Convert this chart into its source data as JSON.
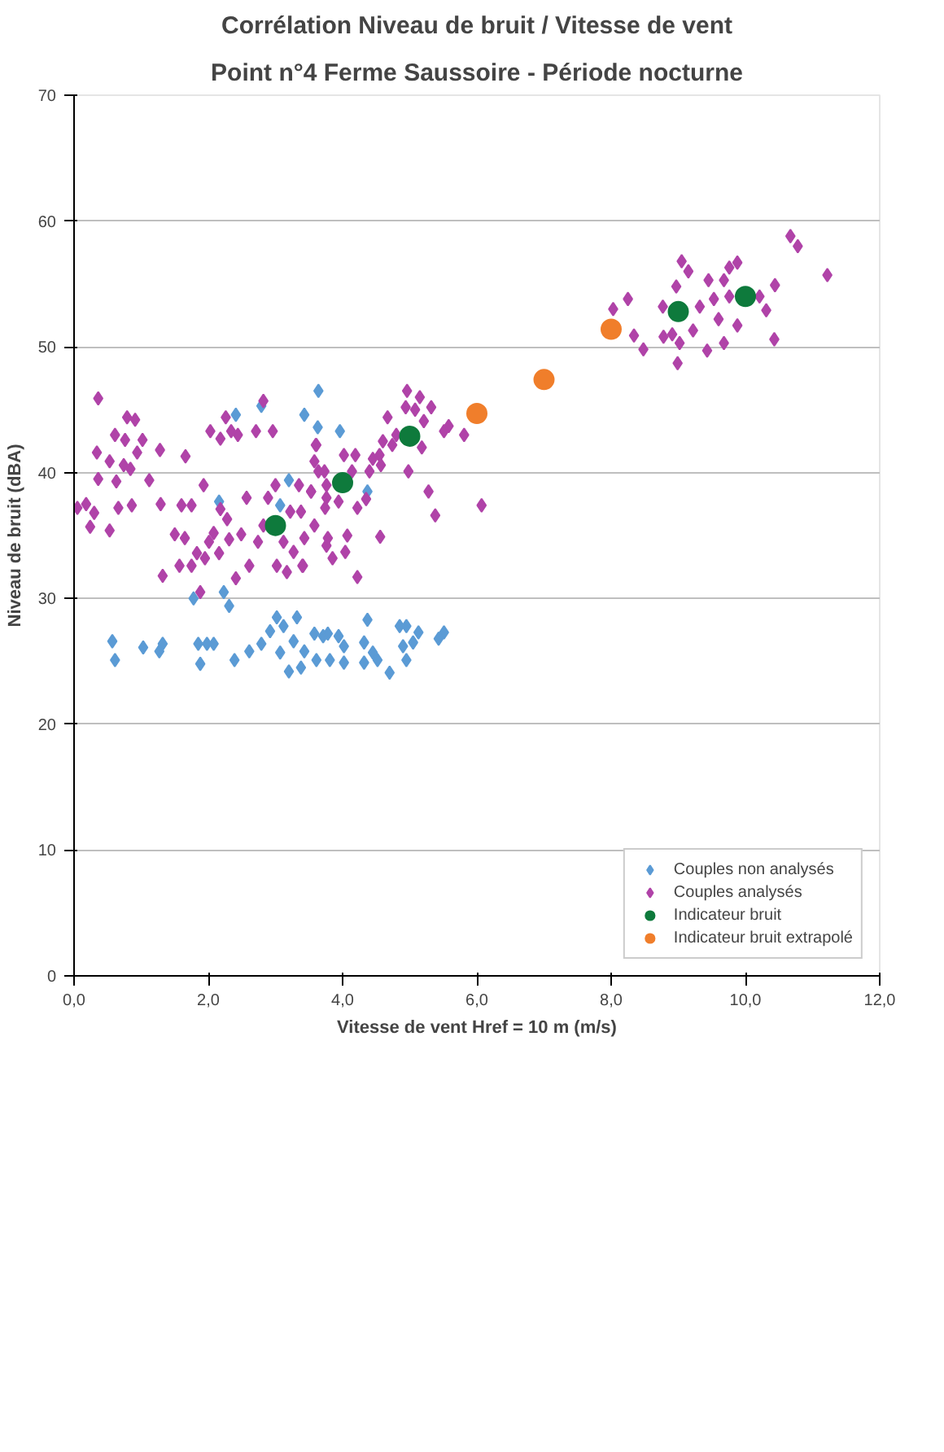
{
  "chart_data": {
    "type": "scatter",
    "title": "Corrélation Niveau de bruit / Vitesse de vent",
    "subtitle": "Point n°4 Ferme Saussoire - Période nocturne",
    "xlabel": "Vitesse de vent Href = 10 m (m/s)",
    "ylabel": "Niveau de bruit (dBA)",
    "xlim": [
      0,
      12
    ],
    "xticks": [
      {
        "value": 0,
        "label": "0,0"
      },
      {
        "value": 2,
        "label": "2,0"
      },
      {
        "value": 4,
        "label": "4,0"
      },
      {
        "value": 6,
        "label": "6,0"
      },
      {
        "value": 8,
        "label": "8,0"
      },
      {
        "value": 10,
        "label": "10,0"
      },
      {
        "value": 12,
        "label": "12,0"
      }
    ],
    "ylim": [
      0,
      70
    ],
    "yticks": [
      0,
      10,
      20,
      30,
      40,
      50,
      60,
      70
    ],
    "grid": "y",
    "legend": "bottom right",
    "series": [
      {
        "name": "Couples non analysés",
        "color": "#5b9bd5",
        "marker": "diamond",
        "x": [
          5.51,
          5.43,
          5.13,
          5.05,
          4.95,
          4.9,
          4.95,
          4.85,
          4.7,
          4.52,
          4.45,
          4.37,
          4.32,
          4.32,
          4.02,
          4.02,
          3.94,
          3.81,
          3.71,
          3.61,
          3.96,
          3.43,
          4.37,
          3.78,
          3.58,
          3.43,
          3.38,
          3.32,
          3.27,
          3.2,
          3.12,
          3.07,
          3.02,
          2.92,
          2.79,
          2.61,
          2.39,
          2.31,
          2.23,
          2.08,
          1.88,
          1.98,
          1.85,
          1.78,
          1.32,
          1.27,
          1.03,
          0.57,
          0.61,
          2.41,
          2.16,
          3.64,
          3.63,
          2.79,
          3.07,
          3.2
        ],
        "values": [
          27.3,
          26.8,
          27.3,
          26.5,
          27.8,
          26.2,
          25.1,
          27.8,
          24.1,
          25.1,
          25.7,
          28.3,
          26.5,
          24.9,
          26.2,
          24.9,
          27.0,
          25.1,
          27.0,
          25.1,
          43.3,
          44.6,
          38.5,
          27.2,
          27.2,
          25.8,
          24.5,
          28.5,
          26.6,
          24.2,
          27.8,
          25.7,
          28.5,
          27.4,
          26.4,
          25.8,
          25.1,
          29.4,
          30.5,
          26.4,
          24.8,
          26.4,
          26.4,
          30.0,
          26.4,
          25.8,
          26.1,
          26.6,
          25.1,
          44.6,
          37.7,
          46.5,
          43.6,
          45.3,
          37.4,
          39.4
        ]
      },
      {
        "name": "Couples analysés",
        "color": "#b043a8",
        "marker": "diamond",
        "x": [
          11.22,
          10.78,
          10.67,
          10.44,
          10.43,
          10.31,
          10.21,
          9.88,
          9.88,
          9.76,
          9.76,
          9.68,
          9.68,
          9.6,
          9.53,
          9.45,
          9.43,
          9.32,
          9.22,
          9.15,
          9.05,
          8.97,
          9.02,
          8.99,
          8.91,
          8.77,
          8.78,
          8.48,
          8.34,
          8.25,
          8.03,
          6.07,
          5.81,
          5.58,
          5.51,
          5.38,
          5.28,
          5.32,
          5.21,
          5.18,
          5.15,
          5.08,
          4.96,
          4.94,
          4.98,
          4.8,
          4.74,
          4.67,
          4.6,
          4.55,
          4.57,
          4.56,
          4.45,
          4.4,
          4.35,
          4.19,
          4.14,
          4.22,
          4.22,
          4.07,
          4.04,
          4.02,
          3.94,
          3.85,
          3.76,
          3.76,
          3.74,
          3.61,
          3.64,
          3.53,
          3.58,
          3.41,
          3.73,
          3.76,
          3.78,
          3.58,
          3.53,
          3.6,
          3.38,
          3.43,
          3.4,
          3.35,
          3.27,
          3.22,
          3.17,
          3.12,
          3.02,
          3.0,
          2.89,
          2.96,
          2.82,
          2.71,
          2.82,
          2.74,
          2.61,
          2.57,
          2.49,
          2.41,
          2.44,
          2.34,
          2.26,
          2.18,
          2.28,
          2.31,
          2.18,
          2.16,
          2.08,
          2.03,
          2.01,
          1.95,
          1.93,
          1.88,
          1.83,
          1.75,
          1.75,
          1.66,
          1.65,
          1.6,
          1.57,
          1.5,
          1.32,
          1.29,
          1.28,
          1.12,
          1.02,
          0.94,
          0.91,
          0.84,
          0.76,
          0.86,
          0.79,
          0.74,
          0.63,
          0.61,
          0.66,
          0.53,
          0.53,
          0.36,
          0.34,
          0.36,
          0.3,
          0.24,
          0.18,
          0.05
        ],
        "values": [
          55.7,
          58.0,
          58.8,
          54.9,
          50.6,
          52.9,
          54.0,
          51.7,
          56.7,
          56.3,
          54.0,
          50.3,
          55.3,
          52.2,
          53.8,
          55.3,
          49.7,
          53.2,
          51.3,
          56.0,
          56.8,
          54.8,
          50.3,
          48.7,
          51.0,
          53.2,
          50.8,
          49.8,
          50.9,
          53.8,
          53.0,
          37.4,
          43.0,
          43.7,
          43.3,
          36.6,
          38.5,
          45.2,
          44.1,
          42.0,
          46.0,
          45.0,
          46.5,
          45.2,
          40.1,
          43.0,
          42.2,
          44.4,
          42.5,
          41.4,
          40.6,
          34.9,
          41.1,
          40.1,
          37.9,
          41.4,
          40.1,
          37.2,
          31.7,
          35.0,
          33.7,
          41.4,
          37.7,
          33.2,
          34.2,
          39.0,
          37.2,
          42.2,
          40.1,
          38.5,
          35.8,
          32.6,
          40.1,
          38.0,
          34.8,
          40.9,
          38.5,
          42.2,
          36.9,
          34.8,
          32.6,
          39.0,
          33.7,
          36.9,
          32.1,
          34.5,
          32.6,
          39.0,
          38.0,
          43.3,
          45.7,
          43.3,
          35.8,
          34.5,
          32.6,
          38.0,
          35.1,
          31.6,
          43.0,
          43.3,
          44.4,
          42.7,
          36.3,
          34.7,
          37.1,
          33.6,
          35.2,
          43.3,
          34.5,
          33.2,
          39.0,
          30.5,
          33.6,
          37.4,
          32.6,
          41.3,
          34.8,
          37.4,
          32.6,
          35.1,
          31.8,
          37.5,
          41.8,
          39.4,
          42.6,
          41.6,
          44.2,
          40.3,
          42.6,
          37.4,
          44.4,
          40.6,
          39.3,
          43.0,
          37.2,
          35.4,
          40.9,
          45.9,
          41.6,
          39.5,
          36.8,
          35.7,
          37.5,
          37.2
        ]
      },
      {
        "name": "Indicateur bruit",
        "color": "#0e7a3c",
        "marker": "circle",
        "x": [
          3,
          4,
          5,
          9,
          10
        ],
        "values": [
          35.8,
          39.2,
          42.9,
          52.8,
          54.0
        ]
      },
      {
        "name": "Indicateur bruit extrapolé",
        "color": "#f07e2b",
        "marker": "circle",
        "x": [
          6,
          7,
          8
        ],
        "values": [
          44.7,
          47.4,
          51.4
        ]
      }
    ]
  }
}
